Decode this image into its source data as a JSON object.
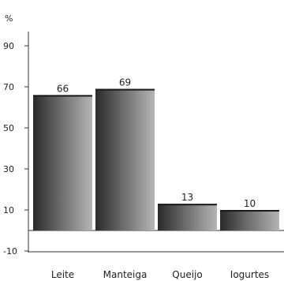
{
  "chart_data": {
    "type": "bar",
    "title": "",
    "xlabel": "",
    "ylabel": "%",
    "categories": [
      "Leite",
      "Manteiga",
      "Queijo",
      "Iogurtes"
    ],
    "values": [
      66,
      69,
      13,
      10
    ],
    "yticks": [
      -10,
      10,
      30,
      50,
      70,
      90
    ],
    "ylim": [
      -10,
      95
    ],
    "grid": false,
    "legend": "none",
    "data_labels": [
      "66",
      "69",
      "13",
      "10"
    ]
  }
}
